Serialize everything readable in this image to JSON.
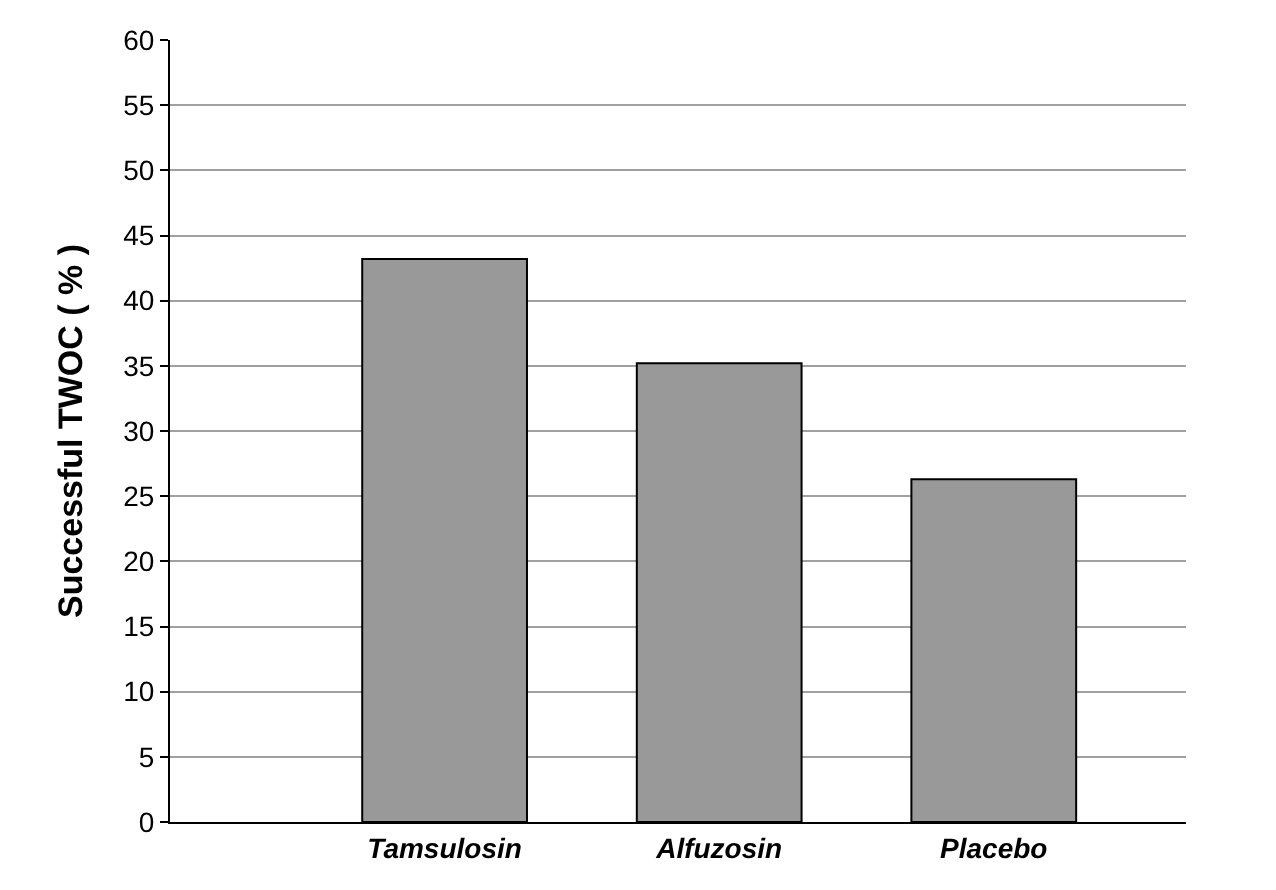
{
  "chart_data": {
    "type": "bar",
    "ylabel": "Successful TWOC ( % )",
    "categories": [
      "Tamsulosin",
      "Alfuzosin",
      "Placebo"
    ],
    "values": [
      43.2,
      35.2,
      26.3
    ],
    "color": "#999999",
    "ylim": [
      0,
      60
    ],
    "yticks": [
      0,
      5,
      10,
      15,
      20,
      25,
      30,
      35,
      40,
      45,
      50,
      55,
      60
    ],
    "grid": "y"
  }
}
